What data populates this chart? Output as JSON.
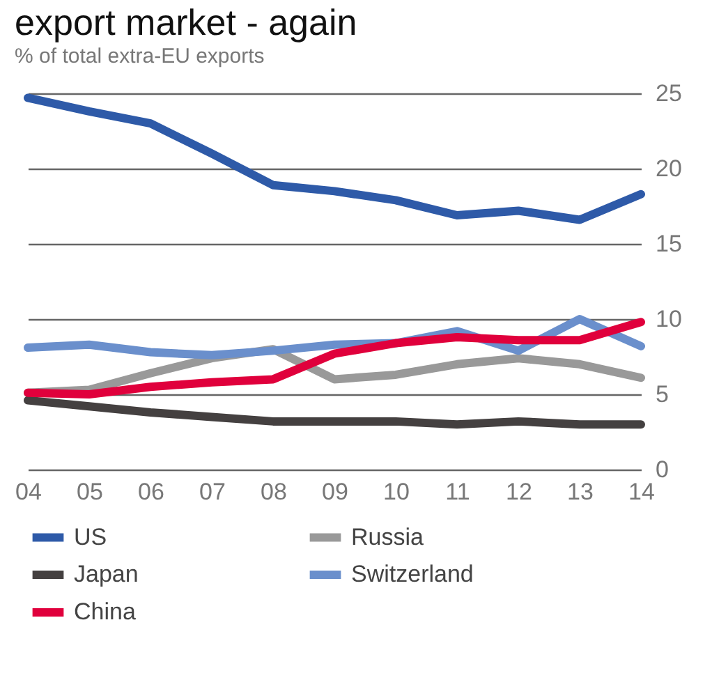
{
  "chart_data": {
    "type": "line",
    "title": "export market - again",
    "subtitle": "% of total extra-EU exports",
    "categories": [
      "04",
      "05",
      "06",
      "07",
      "08",
      "09",
      "10",
      "11",
      "12",
      "13",
      "14"
    ],
    "series": [
      {
        "name": "US",
        "color": "#2e5aa8",
        "values": [
          24.7,
          23.8,
          23.0,
          21.0,
          18.9,
          18.5,
          17.9,
          16.9,
          17.2,
          16.6,
          18.3
        ]
      },
      {
        "name": "Russia",
        "color": "#999999",
        "values": [
          5.1,
          5.3,
          6.4,
          7.4,
          8.0,
          6.0,
          6.3,
          7.0,
          7.4,
          7.0,
          6.1
        ]
      },
      {
        "name": "Japan",
        "color": "#444040",
        "values": [
          4.6,
          4.2,
          3.8,
          3.5,
          3.2,
          3.2,
          3.2,
          3.0,
          3.2,
          3.0,
          3.0
        ]
      },
      {
        "name": "Switzerland",
        "color": "#6a8fcc",
        "values": [
          8.1,
          8.3,
          7.8,
          7.6,
          7.9,
          8.3,
          8.4,
          9.2,
          7.9,
          10.0,
          8.2
        ]
      },
      {
        "name": "China",
        "color": "#e0003c",
        "values": [
          5.1,
          5.0,
          5.5,
          5.8,
          6.0,
          7.7,
          8.4,
          8.8,
          8.6,
          8.6,
          9.8
        ]
      }
    ],
    "ylim": [
      0,
      25
    ],
    "yticks": [
      0,
      5,
      10,
      15,
      20,
      25
    ],
    "grid": "y",
    "legend": "bottom",
    "marker": "none",
    "line_style": "solid"
  }
}
